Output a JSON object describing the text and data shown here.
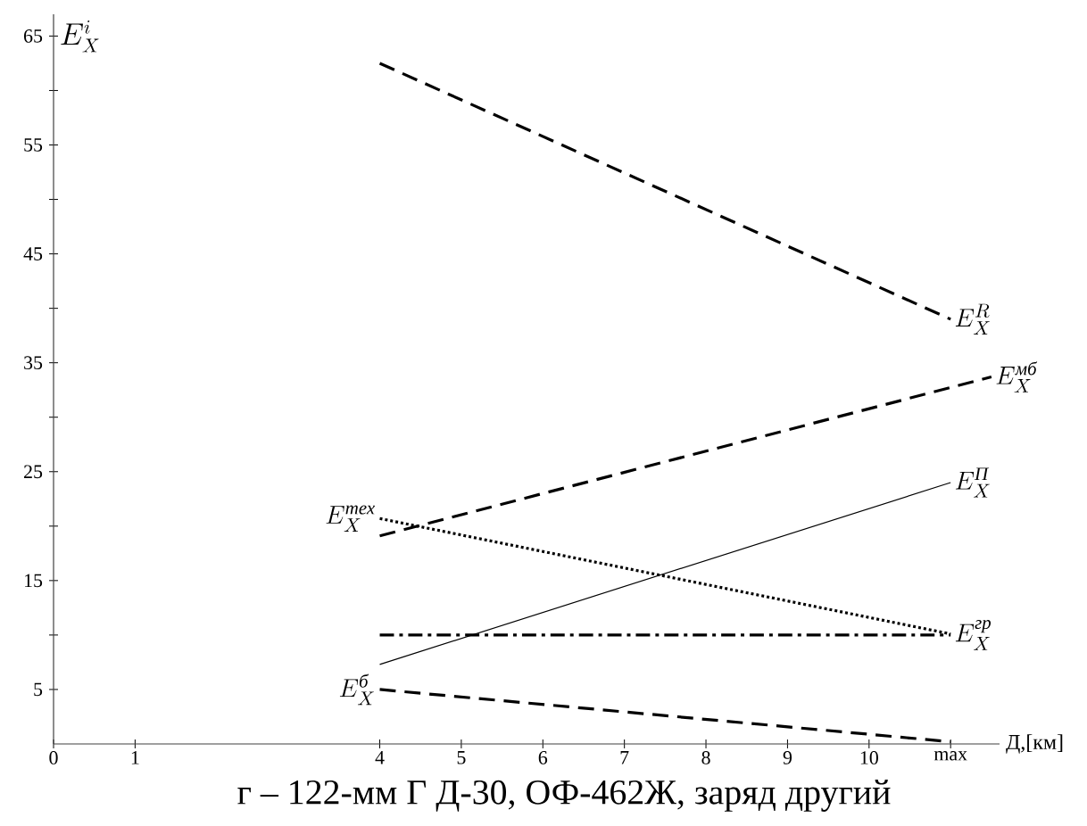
{
  "chart_data": {
    "type": "line",
    "title": "г – 122-мм Г Д-30, ОФ-462Ж, заряд другий",
    "xlabel": "Д,[км]",
    "ylabel": "E_X^{i}",
    "xlim": [
      0,
      11.6
    ],
    "ylim": [
      0,
      67
    ],
    "xticks": [
      0,
      1,
      4,
      5,
      6,
      7,
      8,
      9,
      10,
      {
        "value": 11.0,
        "label": "max"
      }
    ],
    "yticks": [
      5,
      {
        "value": 10,
        "label": null
      },
      15,
      {
        "value": 20,
        "label": null
      },
      25,
      {
        "value": 30,
        "label": null
      },
      35,
      {
        "value": 40,
        "label": null
      },
      45,
      {
        "value": 50,
        "label": null
      },
      55,
      {
        "value": 60,
        "label": null
      },
      65
    ],
    "grid": false,
    "marker": "none",
    "series": [
      {
        "name": "E_X^{R}",
        "color": "#000000",
        "line_style": "dashed",
        "x": [
          4,
          11.0
        ],
        "values": [
          62.5,
          39
        ]
      },
      {
        "name": "E_X^{\\textit{мб}}",
        "color": "#000000",
        "line_style": "dashed",
        "x": [
          4,
          11.5
        ],
        "values": [
          19.1,
          33.7
        ]
      },
      {
        "name": "E_X^{\\textit{тех}}",
        "color": "#000000",
        "line_style": "dotted",
        "x": [
          4,
          11.0
        ],
        "values": [
          20.7,
          10.1
        ]
      },
      {
        "name": "E_X^{\\textit{П}}",
        "color": "#000000",
        "line_style": "solid",
        "x": [
          4,
          11.0
        ],
        "values": [
          7.3,
          24.0
        ]
      },
      {
        "name": "E_X^{\\textit{гр}}",
        "color": "#000000",
        "line_style": "dashdot",
        "x": [
          4,
          11.0
        ],
        "values": [
          10,
          10
        ]
      },
      {
        "name": "E_X^{\\textit{б}}",
        "color": "#000000",
        "line_style": "dashed",
        "x": [
          4,
          11.0
        ],
        "values": [
          5.0,
          0.2
        ]
      }
    ]
  }
}
